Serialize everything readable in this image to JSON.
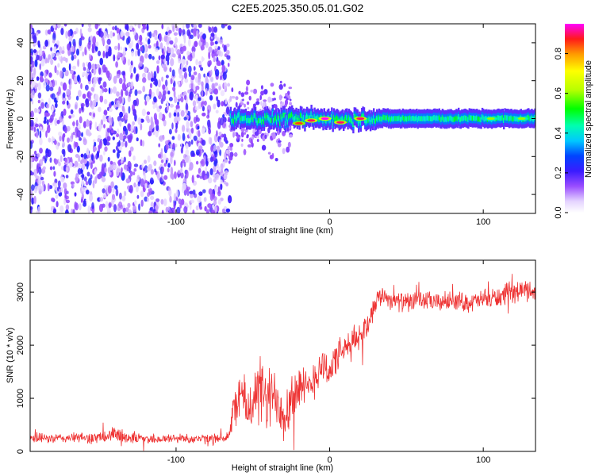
{
  "title": "C2E5.2025.350.05.01.G02",
  "chart_data": [
    {
      "type": "heatmap",
      "xlabel": "Height of straight line (km)",
      "ylabel": "Frequency (Hz)",
      "xlim": [
        -195,
        134
      ],
      "ylim": [
        -50,
        50
      ],
      "x_ticks": [
        -100,
        0,
        100
      ],
      "x_tick_labels": [
        "-100",
        "0",
        "100"
      ],
      "y_ticks": [
        -40,
        -20,
        0,
        20,
        40
      ],
      "y_tick_labels": [
        "-40",
        "-20",
        "0",
        "20",
        "40"
      ],
      "colorbar": {
        "label": "Normalized spectral amplitude",
        "range": [
          0,
          0.95
        ],
        "ticks": [
          0.0,
          0.2,
          0.4,
          0.6,
          0.8
        ],
        "tick_labels": [
          "0.0",
          "0.2",
          "0.4",
          "0.6",
          "0.8"
        ]
      },
      "regions": [
        {
          "x_range": [
            -195,
            -65
          ],
          "y_range": [
            -50,
            50
          ],
          "amplitude": 0.2,
          "pattern": "scattered noise"
        },
        {
          "x_range": [
            -65,
            134
          ],
          "center_frequency": 0,
          "half_width": 3,
          "amplitude": 0.45,
          "pattern": "narrow band"
        }
      ],
      "band_peaks": [
        {
          "x": -20,
          "y": -2.5,
          "amplitude": 0.85
        },
        {
          "x": -12,
          "y": -1,
          "amplitude": 0.9
        },
        {
          "x": -3,
          "y": 0,
          "amplitude": 0.95
        },
        {
          "x": 7,
          "y": -2,
          "amplitude": 0.9
        },
        {
          "x": 20,
          "y": 0,
          "amplitude": 0.9
        },
        {
          "x": 105,
          "y": 0,
          "amplitude": 0.6
        },
        {
          "x": 125,
          "y": 0,
          "amplitude": 0.6
        }
      ]
    },
    {
      "type": "line",
      "xlabel": "Height of straight line (km)",
      "ylabel": "SNR (10 * v/v)",
      "xlim": [
        -195,
        134
      ],
      "ylim": [
        0,
        3600
      ],
      "x_ticks": [
        -100,
        0,
        100
      ],
      "x_tick_labels": [
        "-100",
        "0",
        "100"
      ],
      "y_ticks": [
        0,
        1000,
        2000,
        3000
      ],
      "y_tick_labels": [
        "0",
        "1000",
        "2000",
        "3000"
      ],
      "color": "#ee3333",
      "series": [
        {
          "x": [
            -195,
            -180,
            -165,
            -150,
            -140,
            -130,
            -120,
            -110,
            -100,
            -90,
            -80,
            -70,
            -65,
            -62,
            -58,
            -54,
            -50,
            -45,
            -40,
            -35,
            -30,
            -25,
            -20,
            -15,
            -10,
            -5,
            0,
            5,
            10,
            15,
            20,
            25,
            30,
            35,
            40,
            50,
            60,
            70,
            80,
            90,
            100,
            110,
            120,
            130,
            134
          ],
          "y": [
            250,
            240,
            260,
            250,
            320,
            260,
            240,
            230,
            250,
            240,
            230,
            250,
            300,
            900,
            1100,
            800,
            950,
            1150,
            900,
            1100,
            700,
            1000,
            1250,
            1100,
            1400,
            1650,
            1500,
            1800,
            1900,
            2050,
            2200,
            2400,
            2850,
            2950,
            2850,
            2800,
            2850,
            2800,
            2850,
            2800,
            2850,
            2900,
            3000,
            3050,
            3000
          ],
          "noise": [
            90,
            90,
            90,
            120,
            150,
            120,
            90,
            90,
            90,
            90,
            90,
            90,
            150,
            400,
            500,
            500,
            600,
            650,
            650,
            600,
            550,
            550,
            450,
            400,
            400,
            350,
            350,
            300,
            300,
            300,
            250,
            250,
            200,
            180,
            180,
            180,
            180,
            180,
            180,
            180,
            180,
            200,
            200,
            200,
            200
          ]
        }
      ]
    }
  ]
}
